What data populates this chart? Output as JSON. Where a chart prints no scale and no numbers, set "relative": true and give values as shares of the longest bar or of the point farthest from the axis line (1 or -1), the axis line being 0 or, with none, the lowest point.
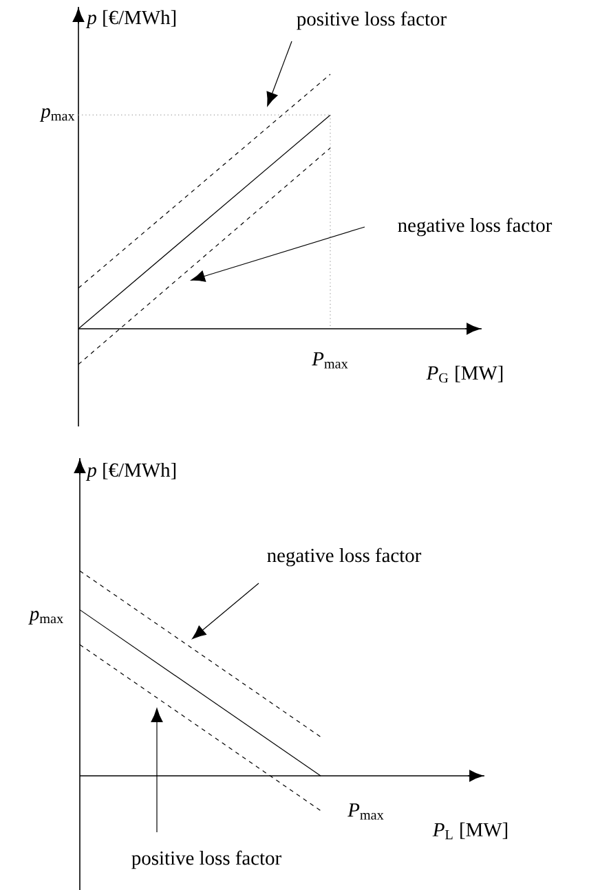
{
  "chart_data": [
    {
      "type": "line",
      "relative": true,
      "xlabel": "*P*$_{G}$ [MW]",
      "ylabel": "*p* [€/MWh]",
      "categories": [
        null,
        null
      ],
      "series": [
        {
          "color": "#000000",
          "line_style": "dashed",
          "values": [
            0.16,
            1
          ]
        },
        {
          "color": "#000000",
          "line_style": "solid",
          "values": [
            0,
            0.84
          ]
        },
        {
          "color": "#000000",
          "line_style": "dashed",
          "values": [
            -0.14,
            0.71
          ]
        }
      ],
      "ref_lines": [
        {
          "axis": "y",
          "value": 0.84,
          "label": "*p*$_{max}$",
          "color": "#999999",
          "line_style": "dotted"
        }
      ],
      "annotations": [
        "*P*$_{max}$",
        "positive loss factor",
        "negative loss factor"
      ]
    },
    {
      "type": "line",
      "relative": true,
      "xlabel": "*P*$_{L}$ [MW]",
      "ylabel": "*p* [€/MWh]",
      "categories": [
        null,
        null
      ],
      "series": [
        {
          "color": "#000000",
          "line_style": "dashed",
          "values": [
            1,
            0.19
          ]
        },
        {
          "color": "#000000",
          "line_style": "solid",
          "values": [
            0.81,
            0
          ]
        },
        {
          "color": "#000000",
          "line_style": "dashed",
          "values": [
            0.64,
            -0.17
          ]
        }
      ],
      "annotations": [
        "*p*$_{max}$",
        "*P*$_{max}$",
        "negative loss factor",
        "positive loss factor"
      ]
    }
  ]
}
